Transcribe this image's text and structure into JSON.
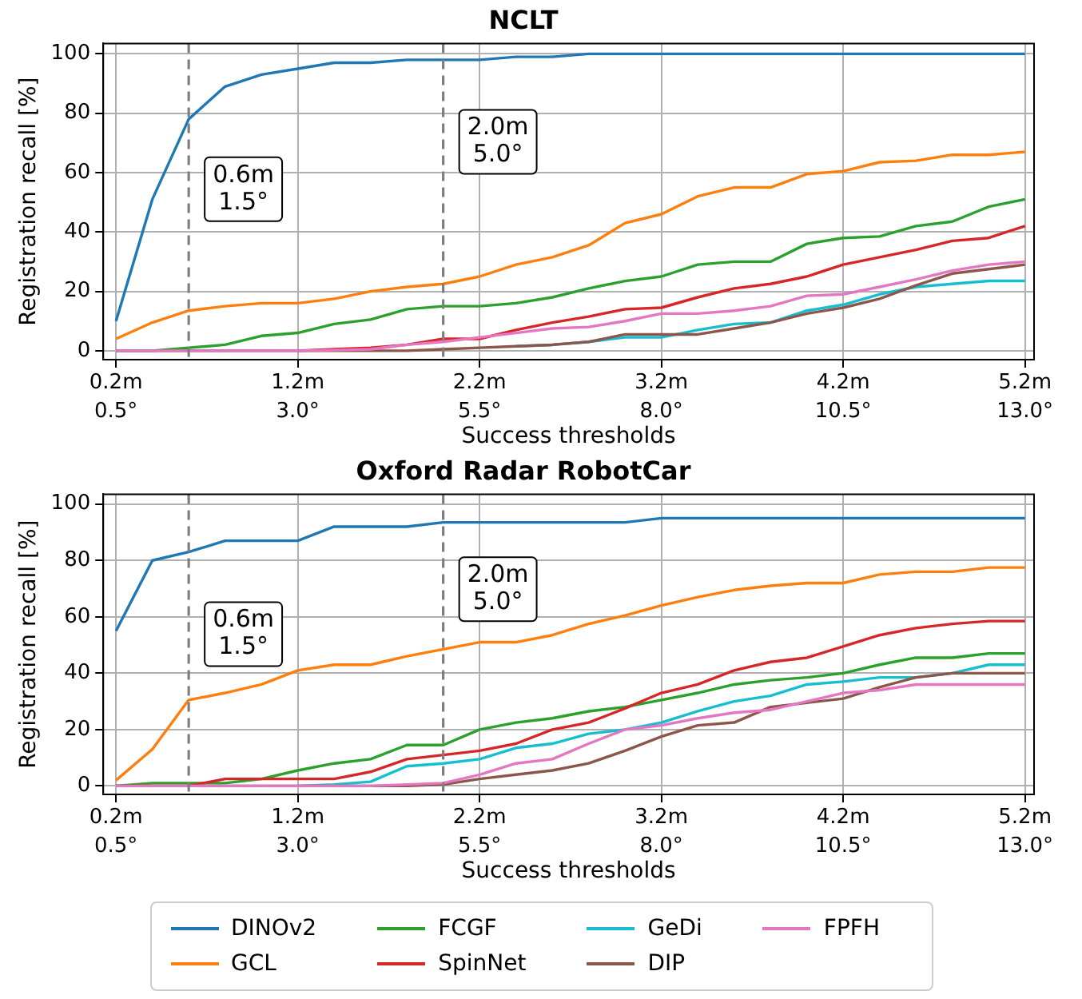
{
  "chart_data": [
    {
      "type": "line",
      "title": "NCLT",
      "xlabel": "Success thresholds",
      "ylabel": "Registration recall [%]",
      "grid": true,
      "x": [
        0.2,
        0.4,
        0.6,
        0.8,
        1.0,
        1.2,
        1.4,
        1.6,
        1.8,
        2.0,
        2.2,
        2.4,
        2.6,
        2.8,
        3.0,
        3.2,
        3.4,
        3.6,
        3.8,
        4.0,
        4.2,
        4.4,
        4.6,
        4.8,
        5.0,
        5.2
      ],
      "xlim": [
        0.13,
        5.25
      ],
      "ylim": [
        -3,
        103.5
      ],
      "yticks": [
        0,
        20,
        40,
        60,
        80,
        100
      ],
      "xticks": [
        {
          "value": 0.2,
          "label": "0.2m"
        },
        {
          "value": 1.2,
          "label": "1.2m"
        },
        {
          "value": 2.2,
          "label": "2.2m"
        },
        {
          "value": 3.2,
          "label": "3.2m"
        },
        {
          "value": 4.2,
          "label": "4.2m"
        },
        {
          "value": 5.2,
          "label": "5.2m"
        }
      ],
      "x2lim": [
        0.325,
        13.125
      ],
      "x2ticks": [
        {
          "value": 0.5,
          "label": "0.5°"
        },
        {
          "value": 3.0,
          "label": "3.0°"
        },
        {
          "value": 5.5,
          "label": "5.5°"
        },
        {
          "value": 8.0,
          "label": "8.0°"
        },
        {
          "value": 10.5,
          "label": "10.5°"
        },
        {
          "value": 13.0,
          "label": "13.0°"
        }
      ],
      "ref_lines": [
        {
          "axis": "x",
          "value": 0.6,
          "label": "0.6m\n1.5°",
          "color": "#7f7f7f",
          "line_style": "dashed"
        },
        {
          "axis": "x",
          "value": 2.0,
          "label": "2.0m\n5.0°",
          "color": "#7f7f7f",
          "line_style": "dashed"
        }
      ],
      "series": [
        {
          "color": "#1f77b4",
          "values": [
            10,
            51,
            78,
            89,
            93,
            95,
            97,
            97,
            98,
            98,
            98,
            99,
            99,
            100,
            100,
            100,
            100,
            100,
            100,
            100,
            100,
            100,
            100,
            100,
            100,
            100
          ]
        },
        {
          "color": "#ff7f0e",
          "values": [
            4,
            9.5,
            13.5,
            15,
            16,
            16,
            17.5,
            20,
            21.5,
            22.5,
            25,
            29,
            31.5,
            35.5,
            43,
            46,
            52,
            55,
            55,
            59.5,
            60.5,
            63.5,
            64,
            66,
            66,
            67
          ]
        },
        {
          "color": "#2ca02c",
          "values": [
            0,
            0,
            1,
            2,
            5,
            6,
            9,
            10.5,
            14,
            15,
            15,
            16,
            18,
            21,
            23.5,
            25,
            29,
            30,
            30,
            36,
            38,
            38.5,
            42,
            43.5,
            48.5,
            51
          ]
        },
        {
          "color": "#d62728",
          "values": [
            null,
            null,
            null,
            null,
            null,
            0,
            0.5,
            1,
            2,
            4,
            4,
            7,
            9.5,
            11.5,
            14,
            14.5,
            18,
            21,
            22.5,
            25,
            29,
            31.5,
            34,
            37,
            38,
            42
          ]
        },
        {
          "color": "#17becf",
          "values": [
            null,
            null,
            null,
            null,
            null,
            null,
            null,
            null,
            null,
            null,
            null,
            1.5,
            2,
            3,
            4.5,
            4.5,
            7,
            9,
            9.5,
            13.5,
            15.5,
            19,
            21.5,
            22.5,
            23.5,
            23.5
          ]
        },
        {
          "color": "#8c564b",
          "values": [
            0,
            0,
            0,
            0,
            0,
            0,
            0,
            0,
            0,
            0.5,
            1,
            1.5,
            2,
            3,
            5.5,
            5.5,
            5.5,
            7.5,
            9.5,
            12.5,
            14.5,
            17.5,
            22,
            26,
            27.5,
            29
          ]
        },
        {
          "color": "#e377c2",
          "values": [
            0,
            0,
            0,
            0,
            0,
            0,
            0.2,
            0.5,
            2,
            3,
            4.5,
            6,
            7.5,
            8,
            10,
            12.5,
            12.5,
            13.5,
            15,
            18.5,
            19,
            21.5,
            24,
            27,
            29,
            30
          ]
        }
      ]
    },
    {
      "type": "line",
      "title": "Oxford Radar RobotCar",
      "xlabel": "Success thresholds",
      "ylabel": "Registration recall [%]",
      "grid": true,
      "legend": "bottom",
      "x": [
        0.2,
        0.4,
        0.6,
        0.8,
        1.0,
        1.2,
        1.4,
        1.6,
        1.8,
        2.0,
        2.2,
        2.4,
        2.6,
        2.8,
        3.0,
        3.2,
        3.4,
        3.6,
        3.8,
        4.0,
        4.2,
        4.4,
        4.6,
        4.8,
        5.0,
        5.2
      ],
      "xlim": [
        0.13,
        5.25
      ],
      "ylim": [
        -3,
        103.5
      ],
      "yticks": [
        0,
        20,
        40,
        60,
        80,
        100
      ],
      "xticks": [
        {
          "value": 0.2,
          "label": "0.2m"
        },
        {
          "value": 1.2,
          "label": "1.2m"
        },
        {
          "value": 2.2,
          "label": "2.2m"
        },
        {
          "value": 3.2,
          "label": "3.2m"
        },
        {
          "value": 4.2,
          "label": "4.2m"
        },
        {
          "value": 5.2,
          "label": "5.2m"
        }
      ],
      "x2lim": [
        0.325,
        13.125
      ],
      "x2ticks": [
        {
          "value": 0.5,
          "label": "0.5°"
        },
        {
          "value": 3.0,
          "label": "3.0°"
        },
        {
          "value": 5.5,
          "label": "5.5°"
        },
        {
          "value": 8.0,
          "label": "8.0°"
        },
        {
          "value": 10.5,
          "label": "10.5°"
        },
        {
          "value": 13.0,
          "label": "13.0°"
        }
      ],
      "ref_lines": [
        {
          "axis": "x",
          "value": 0.6,
          "label": "0.6m\n1.5°",
          "color": "#7f7f7f",
          "line_style": "dashed"
        },
        {
          "axis": "x",
          "value": 2.0,
          "label": "2.0m\n5.0°",
          "color": "#7f7f7f",
          "line_style": "dashed"
        }
      ],
      "series": [
        {
          "name": "DINOv2",
          "color": "#1f77b4",
          "values": [
            55,
            80,
            83,
            87,
            87,
            87,
            92,
            92,
            92,
            93.5,
            93.5,
            93.5,
            93.5,
            93.5,
            93.5,
            95,
            95,
            95,
            95,
            95,
            95,
            95,
            95,
            95,
            95,
            95
          ]
        },
        {
          "name": "GCL",
          "color": "#ff7f0e",
          "values": [
            2,
            13,
            30.5,
            33,
            36,
            41,
            43,
            43,
            46,
            48.5,
            51,
            51,
            53.5,
            57.5,
            60.5,
            64,
            67,
            69.5,
            71,
            72,
            72,
            75,
            76,
            76,
            77.5,
            77.5
          ]
        },
        {
          "name": "FCGF",
          "color": "#2ca02c",
          "values": [
            0,
            1,
            1,
            1,
            2.5,
            5.5,
            8,
            9.5,
            14.5,
            14.5,
            20,
            22.5,
            24,
            26.5,
            28,
            30.5,
            33,
            36,
            37.5,
            38.5,
            40,
            43,
            45.5,
            45.5,
            47,
            47
          ]
        },
        {
          "name": "SpinNet",
          "color": "#d62728",
          "values": [
            0,
            0,
            0,
            2.5,
            2.5,
            2.5,
            2.5,
            5,
            9.5,
            11,
            12.5,
            15,
            20,
            22.5,
            27.5,
            33,
            36,
            41,
            44,
            45.5,
            49.5,
            53.5,
            56,
            57.5,
            58.5,
            58.5
          ]
        },
        {
          "name": "GeDi",
          "color": "#17becf",
          "values": [
            null,
            null,
            null,
            null,
            null,
            0,
            0.5,
            1.5,
            7,
            8,
            9.5,
            13.5,
            15,
            18.5,
            20,
            22.5,
            26.5,
            30,
            32,
            36,
            37,
            38.5,
            38.5,
            40,
            43,
            43
          ]
        },
        {
          "name": "DIP",
          "color": "#8c564b",
          "values": [
            0,
            0,
            0,
            0,
            0,
            0,
            0,
            0,
            0,
            0.5,
            2.5,
            4,
            5.5,
            8,
            12.5,
            17.5,
            21.5,
            22.5,
            28,
            29.5,
            31,
            35,
            38.5,
            40,
            40,
            40
          ]
        },
        {
          "name": "FPFH",
          "color": "#e377c2",
          "values": [
            0,
            0,
            0,
            0,
            0,
            0,
            0,
            0,
            0.5,
            1,
            4,
            8,
            9.5,
            15,
            20,
            21.5,
            24,
            26,
            27,
            30,
            33,
            34,
            36,
            36,
            36,
            36
          ]
        }
      ]
    }
  ]
}
